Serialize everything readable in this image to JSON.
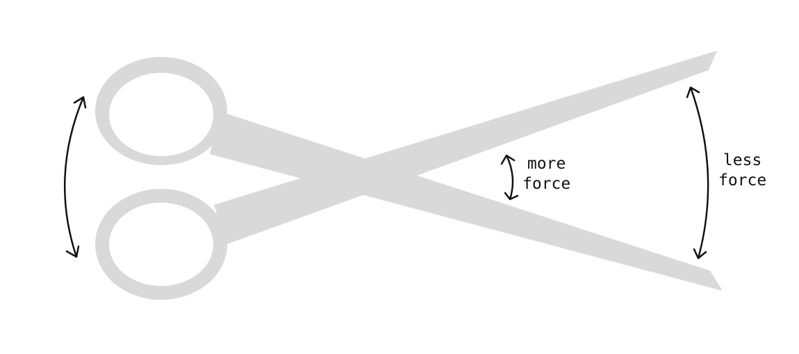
{
  "colors": {
    "scissors": "#d9d9d9",
    "arrows": "#111111",
    "text": "#111111",
    "background": "#ffffff"
  },
  "labels": {
    "more_force": {
      "line1": "more",
      "line2": "force"
    },
    "less_force": {
      "line1": "less",
      "line2": "force"
    }
  }
}
